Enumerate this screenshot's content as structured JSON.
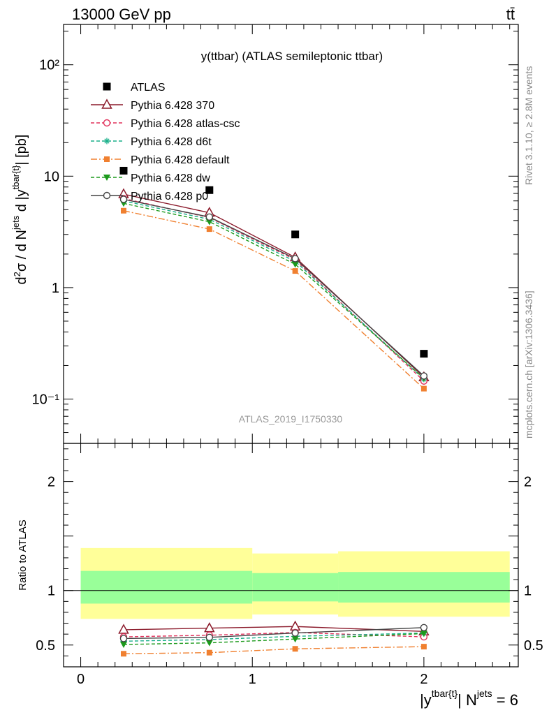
{
  "header": {
    "left_label": "13000 GeV pp",
    "right_label": "tt̄"
  },
  "side_texts": {
    "rivet": "Rivet 3.1.10, ≥ 2.8M events",
    "mcplots": "mcplots.cern.ch [arXiv:1306.3436]"
  },
  "chart_data": [
    {
      "type": "line",
      "panel": "main",
      "title": "y(ttbar) (ATLAS semileptonic ttbar)",
      "ylabel": "d²σ / d N^jets d |y^tbar{t}| [pb]",
      "xlabel": "",
      "yscale": "log",
      "xlim": [
        -0.1,
        2.55
      ],
      "ylim": [
        0.04,
        230
      ],
      "yticks": [
        {
          "value": 100,
          "label": "10²"
        },
        {
          "value": 10,
          "label": "10"
        },
        {
          "value": 1,
          "label": "1"
        },
        {
          "value": 0.1,
          "label": "10⁻¹"
        }
      ],
      "watermark": "ATLAS_2019_I1750330",
      "legend_position": "top-left",
      "x": [
        0.25,
        0.75,
        1.25,
        2.0
      ],
      "series": [
        {
          "name": "ATLAS",
          "color": "#000000",
          "marker": "square",
          "line": "none",
          "values": [
            11.2,
            7.5,
            3.0,
            0.255
          ]
        },
        {
          "name": "Pythia 6.428 370",
          "color": "#8b1a2b",
          "marker": "open-triangle",
          "line": "solid",
          "values": [
            6.9,
            4.7,
            1.87,
            0.157
          ]
        },
        {
          "name": "Pythia 6.428 atlas-csc",
          "color": "#e0305a",
          "marker": "open-circle",
          "line": "dashed",
          "values": [
            6.3,
            4.25,
            1.78,
            0.145
          ]
        },
        {
          "name": "Pythia 6.428 d6t",
          "color": "#1aaf8a",
          "marker": "star",
          "line": "dashed",
          "values": [
            6.0,
            4.1,
            1.72,
            0.151
          ]
        },
        {
          "name": "Pythia 6.428 default",
          "color": "#f08030",
          "marker": "filled-square",
          "line": "dashdot",
          "values": [
            4.9,
            3.35,
            1.41,
            0.124
          ]
        },
        {
          "name": "Pythia 6.428 dw",
          "color": "#1c9a1c",
          "marker": "filled-triangle-down",
          "line": "dashed",
          "values": [
            5.7,
            3.9,
            1.62,
            0.153
          ]
        },
        {
          "name": "Pythia 6.428 p0",
          "color": "#444444",
          "marker": "open-circle",
          "line": "solid",
          "values": [
            6.2,
            4.3,
            1.82,
            0.161
          ]
        }
      ]
    },
    {
      "type": "line",
      "panel": "ratio",
      "ylabel": "Ratio to ATLAS",
      "xlabel": "|y^tbar{t}| N^jets = 6",
      "xlim": [
        -0.1,
        2.55
      ],
      "ylim": [
        0.3,
        2.35
      ],
      "yticks": [
        {
          "value": 0.5,
          "label": "0.5"
        },
        {
          "value": 1,
          "label": "1"
        },
        {
          "value": 2,
          "label": "2"
        }
      ],
      "xticks": [
        {
          "value": 0,
          "label": "0"
        },
        {
          "value": 1,
          "label": "1"
        },
        {
          "value": 2,
          "label": "2"
        }
      ],
      "bands": [
        {
          "x0": 0.0,
          "x1": 1.0,
          "yellow": [
            0.74,
            1.39
          ],
          "green": [
            0.88,
            1.18
          ]
        },
        {
          "x0": 1.0,
          "x1": 1.5,
          "yellow": [
            0.78,
            1.34
          ],
          "green": [
            0.9,
            1.16
          ]
        },
        {
          "x0": 1.5,
          "x1": 2.5,
          "yellow": [
            0.76,
            1.36
          ],
          "green": [
            0.89,
            1.17
          ]
        }
      ],
      "x": [
        0.25,
        0.75,
        1.25,
        2.0
      ],
      "series": [
        {
          "name": "Pythia 6.428 370",
          "color": "#8b1a2b",
          "marker": "open-triangle",
          "line": "solid",
          "values": [
            0.64,
            0.655,
            0.67,
            0.625
          ]
        },
        {
          "name": "Pythia 6.428 atlas-csc",
          "color": "#e0305a",
          "marker": "open-circle",
          "line": "dashed",
          "values": [
            0.575,
            0.59,
            0.615,
            0.575
          ]
        },
        {
          "name": "Pythia 6.428 d6t",
          "color": "#1aaf8a",
          "marker": "star",
          "line": "dashed",
          "values": [
            0.535,
            0.55,
            0.58,
            0.61
          ]
        },
        {
          "name": "Pythia 6.428 default",
          "color": "#f08030",
          "marker": "filled-square",
          "line": "dashdot",
          "values": [
            0.42,
            0.43,
            0.465,
            0.485
          ]
        },
        {
          "name": "Pythia 6.428 dw",
          "color": "#1c9a1c",
          "marker": "filled-triangle-down",
          "line": "dashed",
          "values": [
            0.505,
            0.52,
            0.555,
            0.605
          ]
        },
        {
          "name": "Pythia 6.428 p0",
          "color": "#444444",
          "marker": "open-circle",
          "line": "solid",
          "values": [
            0.56,
            0.57,
            0.61,
            0.66
          ]
        }
      ]
    }
  ]
}
